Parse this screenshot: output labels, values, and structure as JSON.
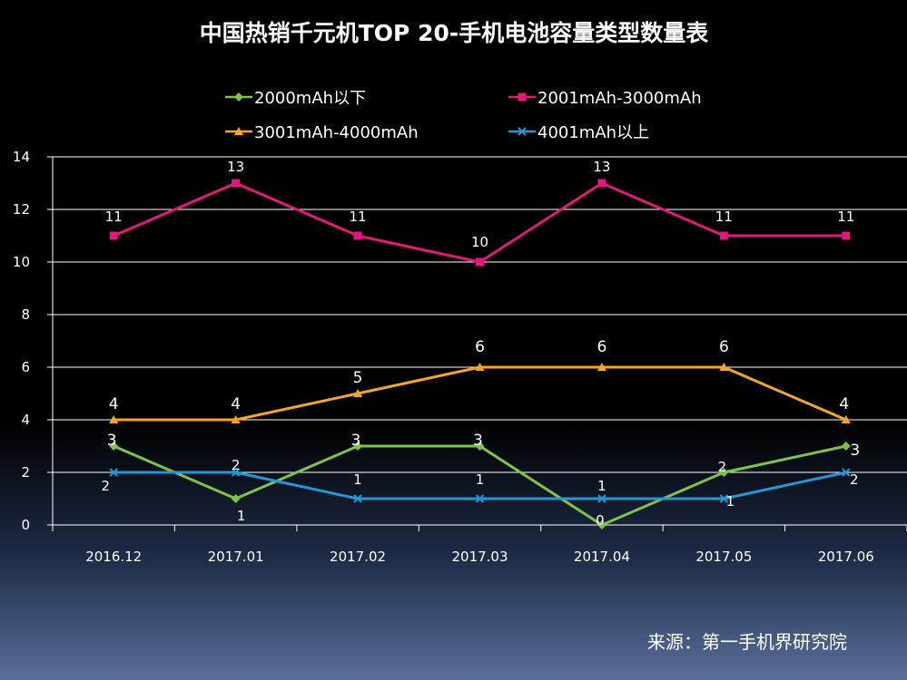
{
  "chart_data": {
    "type": "line",
    "title": "中国热销千元机TOP 20-手机电池容量类型数量表",
    "categories": [
      "2016.12",
      "2017.01",
      "2017.02",
      "2017.03",
      "2017.04",
      "2017.05",
      "2017.06"
    ],
    "ylim": [
      0,
      14
    ],
    "yticks": [
      0,
      2,
      4,
      6,
      8,
      10,
      12,
      14
    ],
    "grid": true,
    "legend": "top",
    "series": [
      {
        "name": "2000mAh以下",
        "values": [
          3,
          1,
          3,
          3,
          0,
          2,
          3
        ],
        "color": "#7ec446",
        "marker": "diamond"
      },
      {
        "name": "2001mAh-3000mAh",
        "values": [
          11,
          13,
          11,
          10,
          13,
          11,
          11
        ],
        "color": "#e0197a",
        "marker": "square"
      },
      {
        "name": "3001mAh-4000mAh",
        "values": [
          4,
          4,
          5,
          6,
          6,
          6,
          4
        ],
        "color": "#f5a623",
        "marker": "triangle"
      },
      {
        "name": "4001mAh以上",
        "values": [
          2,
          2,
          1,
          1,
          1,
          1,
          2
        ],
        "color": "#1f9ad6",
        "marker": "x"
      }
    ]
  },
  "source": "来源：第一手机界研究院"
}
